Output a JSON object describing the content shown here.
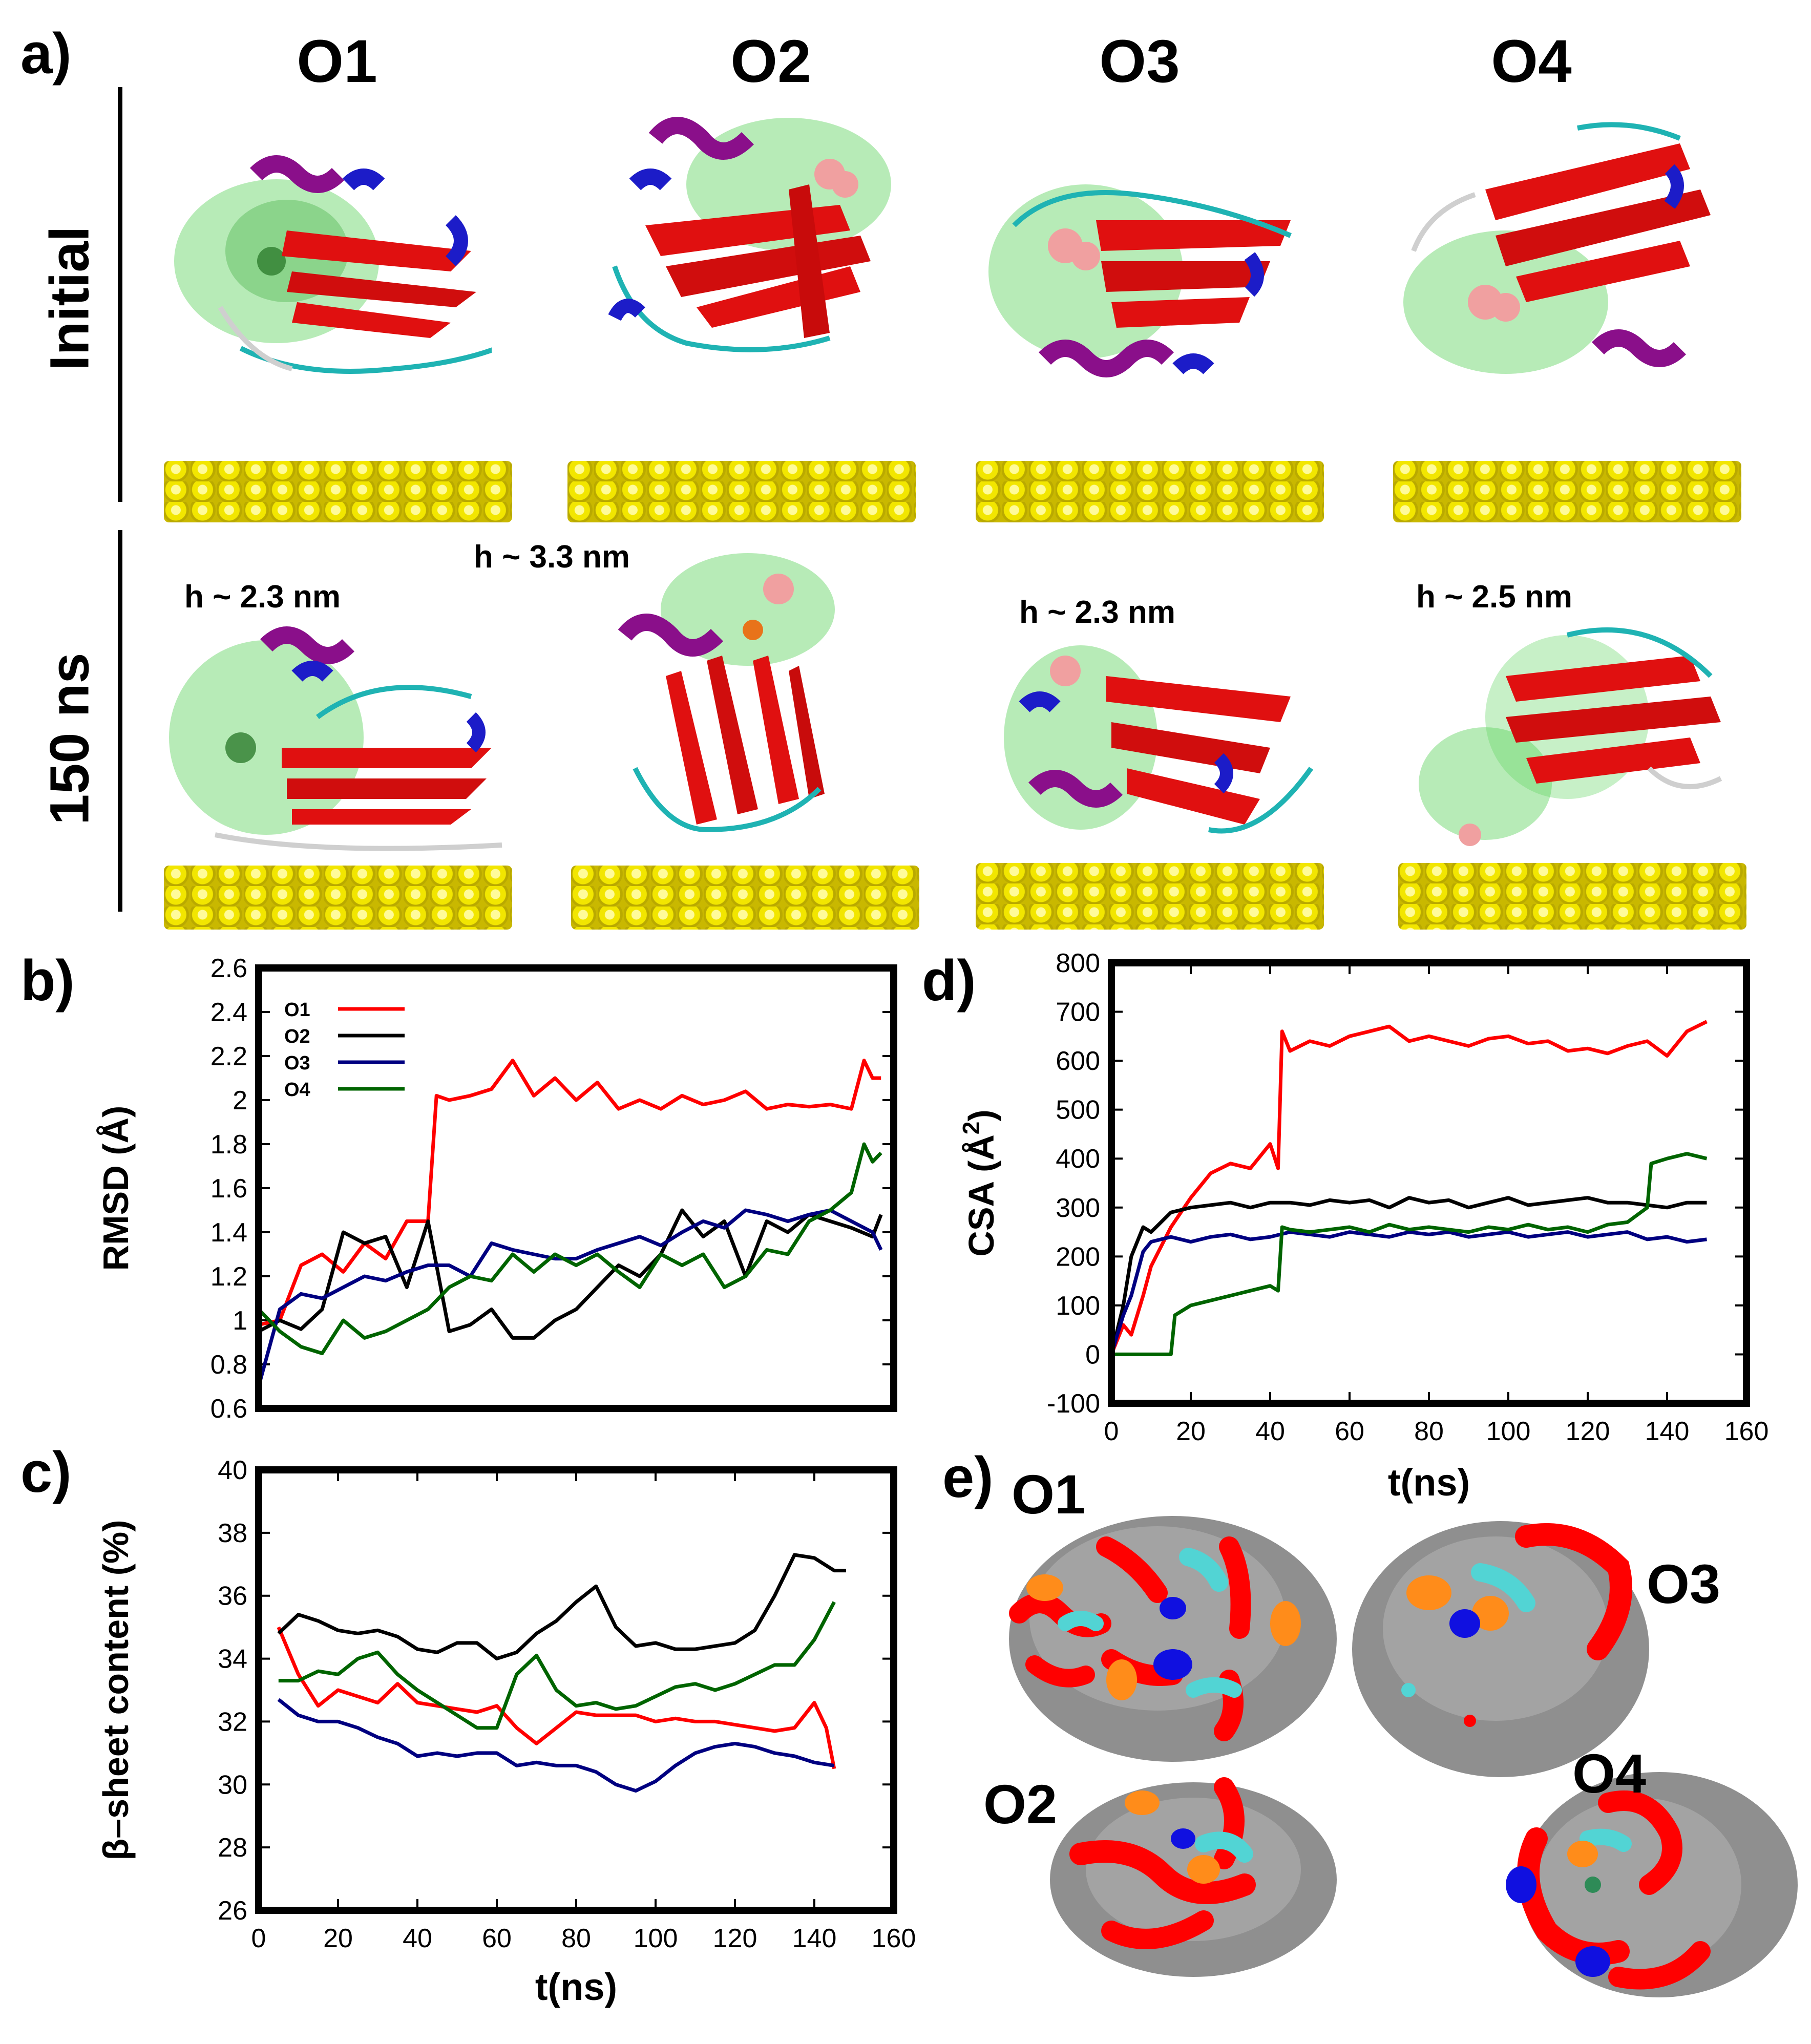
{
  "panel_a": {
    "letter": "a)",
    "columns": [
      "O1",
      "O2",
      "O3",
      "O4"
    ],
    "rows": [
      "Initial",
      "150 ns"
    ],
    "heights": [
      "h ~ 2.3 nm",
      "h ~ 3.3 nm",
      "h ~ 2.3 nm",
      "h ~ 2.5 nm"
    ],
    "surface_color": "#f2e600"
  },
  "colors": {
    "O1": "#ff0000",
    "O2": "#000000",
    "O3": "#000080",
    "O4": "#006400"
  },
  "chart_data": [
    {
      "id": "b",
      "letter": "b)",
      "type": "line",
      "xlabel": "",
      "ylabel": "RMSD (Å)",
      "xlim": [
        0,
        150
      ],
      "ylim": [
        0.6,
        2.6
      ],
      "yticks": [
        "0.6",
        "0.8",
        "1",
        "1.2",
        "1.4",
        "1.6",
        "1.8",
        "2",
        "2.2",
        "2.4",
        "2.6"
      ],
      "ytick_values": [
        0.6,
        0.8,
        1.0,
        1.2,
        1.4,
        1.6,
        1.8,
        2.0,
        2.2,
        2.4,
        2.6
      ],
      "xticks": [],
      "legend": "top-left",
      "series": [
        {
          "name": "O1",
          "color": "#ff0000",
          "x": [
            0,
            5,
            10,
            15,
            20,
            25,
            30,
            35,
            40,
            42,
            45,
            50,
            55,
            60,
            65,
            70,
            75,
            80,
            85,
            90,
            95,
            100,
            105,
            110,
            115,
            120,
            125,
            130,
            135,
            140,
            143,
            145,
            147
          ],
          "values": [
            0.98,
            1.0,
            1.25,
            1.3,
            1.22,
            1.35,
            1.28,
            1.45,
            1.45,
            2.02,
            2.0,
            2.02,
            2.05,
            2.18,
            2.02,
            2.1,
            2.0,
            2.08,
            1.96,
            2.0,
            1.96,
            2.02,
            1.98,
            2.0,
            2.04,
            1.96,
            1.98,
            1.97,
            1.98,
            1.96,
            2.18,
            2.1,
            2.1
          ]
        },
        {
          "name": "O2",
          "color": "#000000",
          "x": [
            0,
            5,
            10,
            15,
            20,
            25,
            30,
            35,
            40,
            45,
            50,
            55,
            60,
            65,
            70,
            75,
            80,
            85,
            90,
            95,
            100,
            105,
            110,
            115,
            120,
            125,
            130,
            135,
            140,
            145,
            147
          ],
          "values": [
            0.95,
            1.0,
            0.96,
            1.05,
            1.4,
            1.35,
            1.38,
            1.15,
            1.45,
            0.95,
            0.98,
            1.05,
            0.92,
            0.92,
            1.0,
            1.05,
            1.15,
            1.25,
            1.2,
            1.3,
            1.5,
            1.38,
            1.45,
            1.2,
            1.45,
            1.4,
            1.48,
            1.45,
            1.42,
            1.38,
            1.48
          ]
        },
        {
          "name": "O3",
          "color": "#000080",
          "x": [
            0,
            5,
            10,
            15,
            20,
            25,
            30,
            35,
            40,
            45,
            50,
            55,
            60,
            65,
            70,
            75,
            80,
            85,
            90,
            95,
            100,
            105,
            110,
            115,
            120,
            125,
            130,
            135,
            140,
            145,
            147
          ],
          "values": [
            0.7,
            1.05,
            1.12,
            1.1,
            1.15,
            1.2,
            1.18,
            1.22,
            1.25,
            1.25,
            1.2,
            1.35,
            1.32,
            1.3,
            1.28,
            1.28,
            1.32,
            1.35,
            1.38,
            1.34,
            1.4,
            1.45,
            1.42,
            1.5,
            1.48,
            1.45,
            1.48,
            1.5,
            1.45,
            1.4,
            1.32
          ]
        },
        {
          "name": "O4",
          "color": "#006400",
          "x": [
            0,
            5,
            10,
            15,
            20,
            25,
            30,
            35,
            40,
            45,
            50,
            55,
            60,
            65,
            70,
            75,
            80,
            85,
            90,
            95,
            100,
            105,
            110,
            115,
            120,
            125,
            130,
            135,
            140,
            143,
            145,
            147
          ],
          "values": [
            1.05,
            0.95,
            0.88,
            0.85,
            1.0,
            0.92,
            0.95,
            1.0,
            1.05,
            1.15,
            1.2,
            1.18,
            1.3,
            1.22,
            1.3,
            1.25,
            1.3,
            1.22,
            1.15,
            1.3,
            1.25,
            1.3,
            1.15,
            1.2,
            1.32,
            1.3,
            1.45,
            1.5,
            1.58,
            1.8,
            1.72,
            1.76
          ]
        }
      ]
    },
    {
      "id": "c",
      "letter": "c)",
      "type": "line",
      "xlabel": "t(ns)",
      "ylabel": "β–sheet content (%)",
      "xlim": [
        0,
        160
      ],
      "ylim": [
        26,
        40
      ],
      "yticks": [
        "26",
        "28",
        "30",
        "32",
        "34",
        "36",
        "38",
        "40"
      ],
      "ytick_values": [
        26,
        28,
        30,
        32,
        34,
        36,
        38,
        40
      ],
      "xticks": [
        "0",
        "20",
        "40",
        "60",
        "80",
        "100",
        "120",
        "140",
        "160"
      ],
      "xtick_values": [
        0,
        20,
        40,
        60,
        80,
        100,
        120,
        140,
        160
      ],
      "series": [
        {
          "name": "O1",
          "color": "#ff0000",
          "x": [
            5,
            10,
            15,
            20,
            25,
            30,
            35,
            40,
            45,
            50,
            55,
            60,
            65,
            70,
            75,
            80,
            85,
            90,
            95,
            100,
            105,
            110,
            115,
            120,
            125,
            130,
            135,
            140,
            143,
            145
          ],
          "values": [
            35.0,
            33.5,
            32.5,
            33.0,
            32.8,
            32.6,
            33.2,
            32.6,
            32.5,
            32.4,
            32.3,
            32.5,
            31.8,
            31.3,
            31.8,
            32.3,
            32.2,
            32.2,
            32.2,
            32.0,
            32.1,
            32.0,
            32.0,
            31.9,
            31.8,
            31.7,
            31.8,
            32.6,
            31.8,
            30.5
          ]
        },
        {
          "name": "O2",
          "color": "#000000",
          "x": [
            5,
            10,
            15,
            20,
            25,
            30,
            35,
            40,
            45,
            50,
            55,
            60,
            65,
            70,
            75,
            80,
            85,
            90,
            95,
            100,
            105,
            110,
            115,
            120,
            125,
            130,
            135,
            140,
            145,
            148
          ],
          "values": [
            34.8,
            35.4,
            35.2,
            34.9,
            34.8,
            34.9,
            34.7,
            34.3,
            34.2,
            34.5,
            34.5,
            34.0,
            34.2,
            34.8,
            35.2,
            35.8,
            36.3,
            35.0,
            34.4,
            34.5,
            34.3,
            34.3,
            34.4,
            34.5,
            34.9,
            36.0,
            37.3,
            37.2,
            36.8,
            36.8
          ]
        },
        {
          "name": "O3",
          "color": "#000080",
          "x": [
            5,
            10,
            15,
            20,
            25,
            30,
            35,
            40,
            45,
            50,
            55,
            60,
            65,
            70,
            75,
            80,
            85,
            90,
            95,
            100,
            105,
            110,
            115,
            120,
            125,
            130,
            135,
            140,
            145
          ],
          "values": [
            32.7,
            32.2,
            32.0,
            32.0,
            31.8,
            31.5,
            31.3,
            30.9,
            31.0,
            30.9,
            31.0,
            31.0,
            30.6,
            30.7,
            30.6,
            30.6,
            30.4,
            30.0,
            29.8,
            30.1,
            30.6,
            31.0,
            31.2,
            31.3,
            31.2,
            31.0,
            30.9,
            30.7,
            30.6
          ]
        },
        {
          "name": "O4",
          "color": "#006400",
          "x": [
            5,
            10,
            15,
            20,
            25,
            30,
            35,
            40,
            45,
            50,
            55,
            60,
            65,
            70,
            75,
            80,
            85,
            90,
            95,
            100,
            105,
            110,
            115,
            120,
            125,
            130,
            135,
            140,
            145
          ],
          "values": [
            33.3,
            33.3,
            33.6,
            33.5,
            34.0,
            34.2,
            33.5,
            33.0,
            32.6,
            32.2,
            31.8,
            31.8,
            33.5,
            34.1,
            33.0,
            32.5,
            32.6,
            32.4,
            32.5,
            32.8,
            33.1,
            33.2,
            33.0,
            33.2,
            33.5,
            33.8,
            33.8,
            34.6,
            35.8
          ]
        }
      ]
    },
    {
      "id": "d",
      "letter": "d)",
      "type": "line",
      "xlabel": "t(ns)",
      "ylabel": "CSA (Å²)",
      "ylabel_main": "CSA (Å",
      "ylabel_sup": "2",
      "ylabel_end": ")",
      "xlim": [
        0,
        160
      ],
      "ylim": [
        -100,
        800
      ],
      "yticks": [
        "-100",
        "0",
        "100",
        "200",
        "300",
        "400",
        "500",
        "600",
        "700",
        "800"
      ],
      "ytick_values": [
        -100,
        0,
        100,
        200,
        300,
        400,
        500,
        600,
        700,
        800
      ],
      "xticks": [
        "0",
        "20",
        "40",
        "60",
        "80",
        "100",
        "120",
        "140",
        "160"
      ],
      "xtick_values": [
        0,
        20,
        40,
        60,
        80,
        100,
        120,
        140,
        160
      ],
      "series": [
        {
          "name": "O1",
          "color": "#ff0000",
          "x": [
            0,
            3,
            5,
            8,
            10,
            15,
            20,
            25,
            30,
            35,
            40,
            42,
            43,
            45,
            50,
            55,
            60,
            65,
            70,
            75,
            80,
            85,
            90,
            95,
            100,
            105,
            110,
            115,
            120,
            125,
            130,
            135,
            140,
            145,
            150
          ],
          "values": [
            0,
            60,
            40,
            120,
            180,
            260,
            320,
            370,
            390,
            380,
            430,
            380,
            660,
            620,
            640,
            630,
            650,
            660,
            670,
            640,
            650,
            640,
            630,
            645,
            650,
            635,
            640,
            620,
            625,
            615,
            630,
            640,
            610,
            660,
            680
          ]
        },
        {
          "name": "O2",
          "color": "#000000",
          "x": [
            0,
            3,
            5,
            8,
            10,
            15,
            20,
            25,
            30,
            35,
            40,
            45,
            50,
            55,
            60,
            65,
            70,
            75,
            80,
            85,
            90,
            95,
            100,
            105,
            110,
            115,
            120,
            125,
            130,
            135,
            140,
            145,
            150
          ],
          "values": [
            0,
            100,
            200,
            260,
            250,
            290,
            300,
            305,
            310,
            300,
            310,
            310,
            305,
            315,
            310,
            315,
            300,
            320,
            310,
            315,
            300,
            310,
            320,
            305,
            310,
            315,
            320,
            310,
            310,
            305,
            300,
            310,
            310
          ]
        },
        {
          "name": "O3",
          "color": "#000080",
          "x": [
            0,
            3,
            5,
            8,
            10,
            15,
            20,
            25,
            30,
            35,
            40,
            45,
            50,
            55,
            60,
            65,
            70,
            75,
            80,
            85,
            90,
            95,
            100,
            105,
            110,
            115,
            120,
            125,
            130,
            135,
            140,
            145,
            150
          ],
          "values": [
            0,
            80,
            120,
            210,
            230,
            240,
            230,
            240,
            245,
            235,
            240,
            250,
            245,
            240,
            250,
            245,
            240,
            250,
            245,
            250,
            240,
            245,
            250,
            240,
            245,
            250,
            240,
            245,
            250,
            235,
            240,
            230,
            235
          ]
        },
        {
          "name": "O4",
          "color": "#006400",
          "x": [
            0,
            5,
            10,
            15,
            16,
            20,
            25,
            30,
            35,
            40,
            42,
            43,
            45,
            50,
            55,
            60,
            65,
            70,
            75,
            80,
            85,
            90,
            95,
            100,
            105,
            110,
            115,
            120,
            125,
            130,
            135,
            136,
            140,
            145,
            150
          ],
          "values": [
            0,
            0,
            0,
            0,
            80,
            100,
            110,
            120,
            130,
            140,
            130,
            260,
            255,
            250,
            255,
            260,
            250,
            265,
            255,
            260,
            255,
            250,
            260,
            255,
            265,
            255,
            260,
            250,
            265,
            270,
            300,
            390,
            400,
            410,
            400
          ]
        }
      ]
    }
  ],
  "panel_e": {
    "letter": "e)",
    "labels": [
      "O1",
      "O3",
      "O2",
      "O4"
    ],
    "surface_colors": {
      "base": "#8f8f8f",
      "a": "#ff0000",
      "b": "#52d4d4",
      "c": "#ff8c1a",
      "d": "#1010e0"
    }
  }
}
